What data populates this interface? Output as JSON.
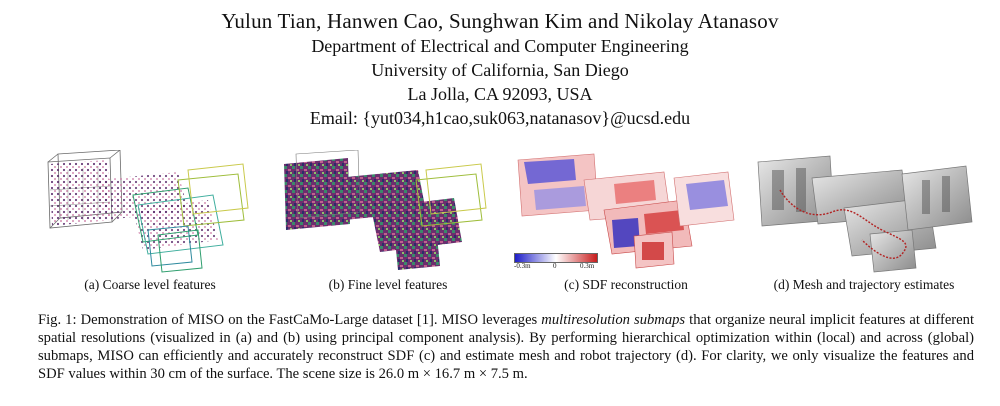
{
  "header": {
    "authors": "Yulun Tian, Hanwen Cao, Sunghwan Kim and Nikolay Atanasov",
    "affiliation_lines": [
      "Department of Electrical and Computer Engineering",
      "University of California, San Diego",
      "La Jolla, CA 92093, USA",
      "Email: {yut034,h1cao,suk063,natanasov}@ucsd.edu"
    ]
  },
  "figure": {
    "panels": [
      {
        "caption": "(a) Coarse level features"
      },
      {
        "caption": "(b) Fine level features"
      },
      {
        "caption": "(c) SDF reconstruction",
        "colorbar": {
          "min": "-0.3m",
          "mid": "0",
          "max": "0.3m",
          "colors": [
            "#1d1dc8",
            "#ffffff",
            "#c81d1d"
          ]
        }
      },
      {
        "caption": "(d) Mesh and trajectory estimates"
      }
    ],
    "caption": {
      "part1": "Fig. 1: Demonstration of MISO on the FastCaMo-Large dataset [1]. MISO leverages ",
      "emphasis": "multiresolution submaps",
      "part2": " that organize neural implicit features at different spatial resolutions (visualized in (a) and (b) using principal component analysis). By performing hierarchical optimization within (local) and across (global) submaps, MISO can efficiently and accurately reconstruct SDF (c) and estimate mesh and robot trajectory (d). For clarity, we only visualize the features and SDF values within 30 cm of the surface. The scene size is 26.0 m × 16.7 m × 7.5 m."
    }
  }
}
